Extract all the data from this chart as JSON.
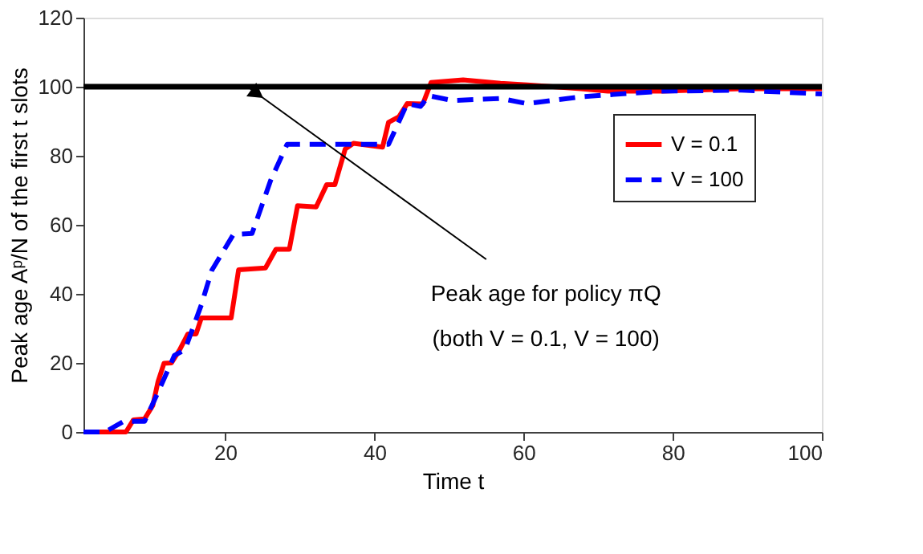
{
  "chart_data": {
    "type": "step",
    "xlabel": "Time t",
    "ylabel": "Peak age Aᵖ/N of the first t slots",
    "xlim": [
      1,
      100
    ],
    "ylim": [
      0,
      120
    ],
    "xticks": [
      20,
      40,
      60,
      80,
      100
    ],
    "yticks": [
      0,
      20,
      40,
      60,
      80,
      100,
      120
    ],
    "grid": false,
    "legend": "top right",
    "marker": "none",
    "series": [
      {
        "name": "V = 0.1",
        "color": "#ff0000",
        "line_style": "solid",
        "x": [
          1,
          6.7,
          7.7,
          9.2,
          10.3,
          11.0,
          11.8,
          12.8,
          13.9,
          15.0,
          16.1,
          16.8,
          20.8,
          21.8,
          25.4,
          26.8,
          28.6,
          29.7,
          32.2,
          33.6,
          34.7,
          36.1,
          37.2,
          41.1,
          41.9,
          43.3,
          44.4,
          46.5,
          47.6,
          51.9,
          56.9,
          60.5,
          67.7,
          71.3,
          78.5,
          89.2,
          100
        ],
        "values": [
          0,
          0,
          3.5,
          3.8,
          7.7,
          14.6,
          19.9,
          20,
          23.8,
          28.4,
          28.4,
          33,
          33,
          47,
          47.5,
          52.9,
          52.9,
          65.5,
          65.2,
          71.6,
          71.6,
          82,
          83.6,
          82.5,
          89.7,
          91.3,
          95.1,
          95,
          101.2,
          102,
          101,
          100.5,
          99.4,
          98.7,
          98.7,
          99.4,
          99.4
        ]
      },
      {
        "name": "V = 100",
        "color": "#0000ff",
        "line_style": "dashed",
        "x": [
          1,
          3.9,
          6.4,
          9.2,
          11.0,
          13.2,
          14.6,
          16.8,
          18.2,
          21.1,
          23.6,
          26.1,
          28.3,
          41.9,
          44.4,
          46.2,
          47.3,
          50.5,
          56.9,
          60.5,
          67.7,
          78.5,
          89.2,
          100
        ],
        "values": [
          0,
          0,
          3.1,
          3.1,
          11.5,
          22.2,
          23.8,
          36.8,
          46.8,
          57.2,
          57.5,
          72.9,
          83.3,
          83.3,
          95.1,
          94.3,
          97.4,
          96,
          96.6,
          95.1,
          97.1,
          98.7,
          99,
          97.9
        ]
      }
    ],
    "ref_lines": [
      {
        "axis": "y",
        "value": 100,
        "color": "#000000",
        "line_style": "solid"
      }
    ],
    "annotations": [
      {
        "text": "Peak age for policy πQ\n(both V = 0.1, V = 100)",
        "x": 23,
        "y": 100
      }
    ]
  }
}
